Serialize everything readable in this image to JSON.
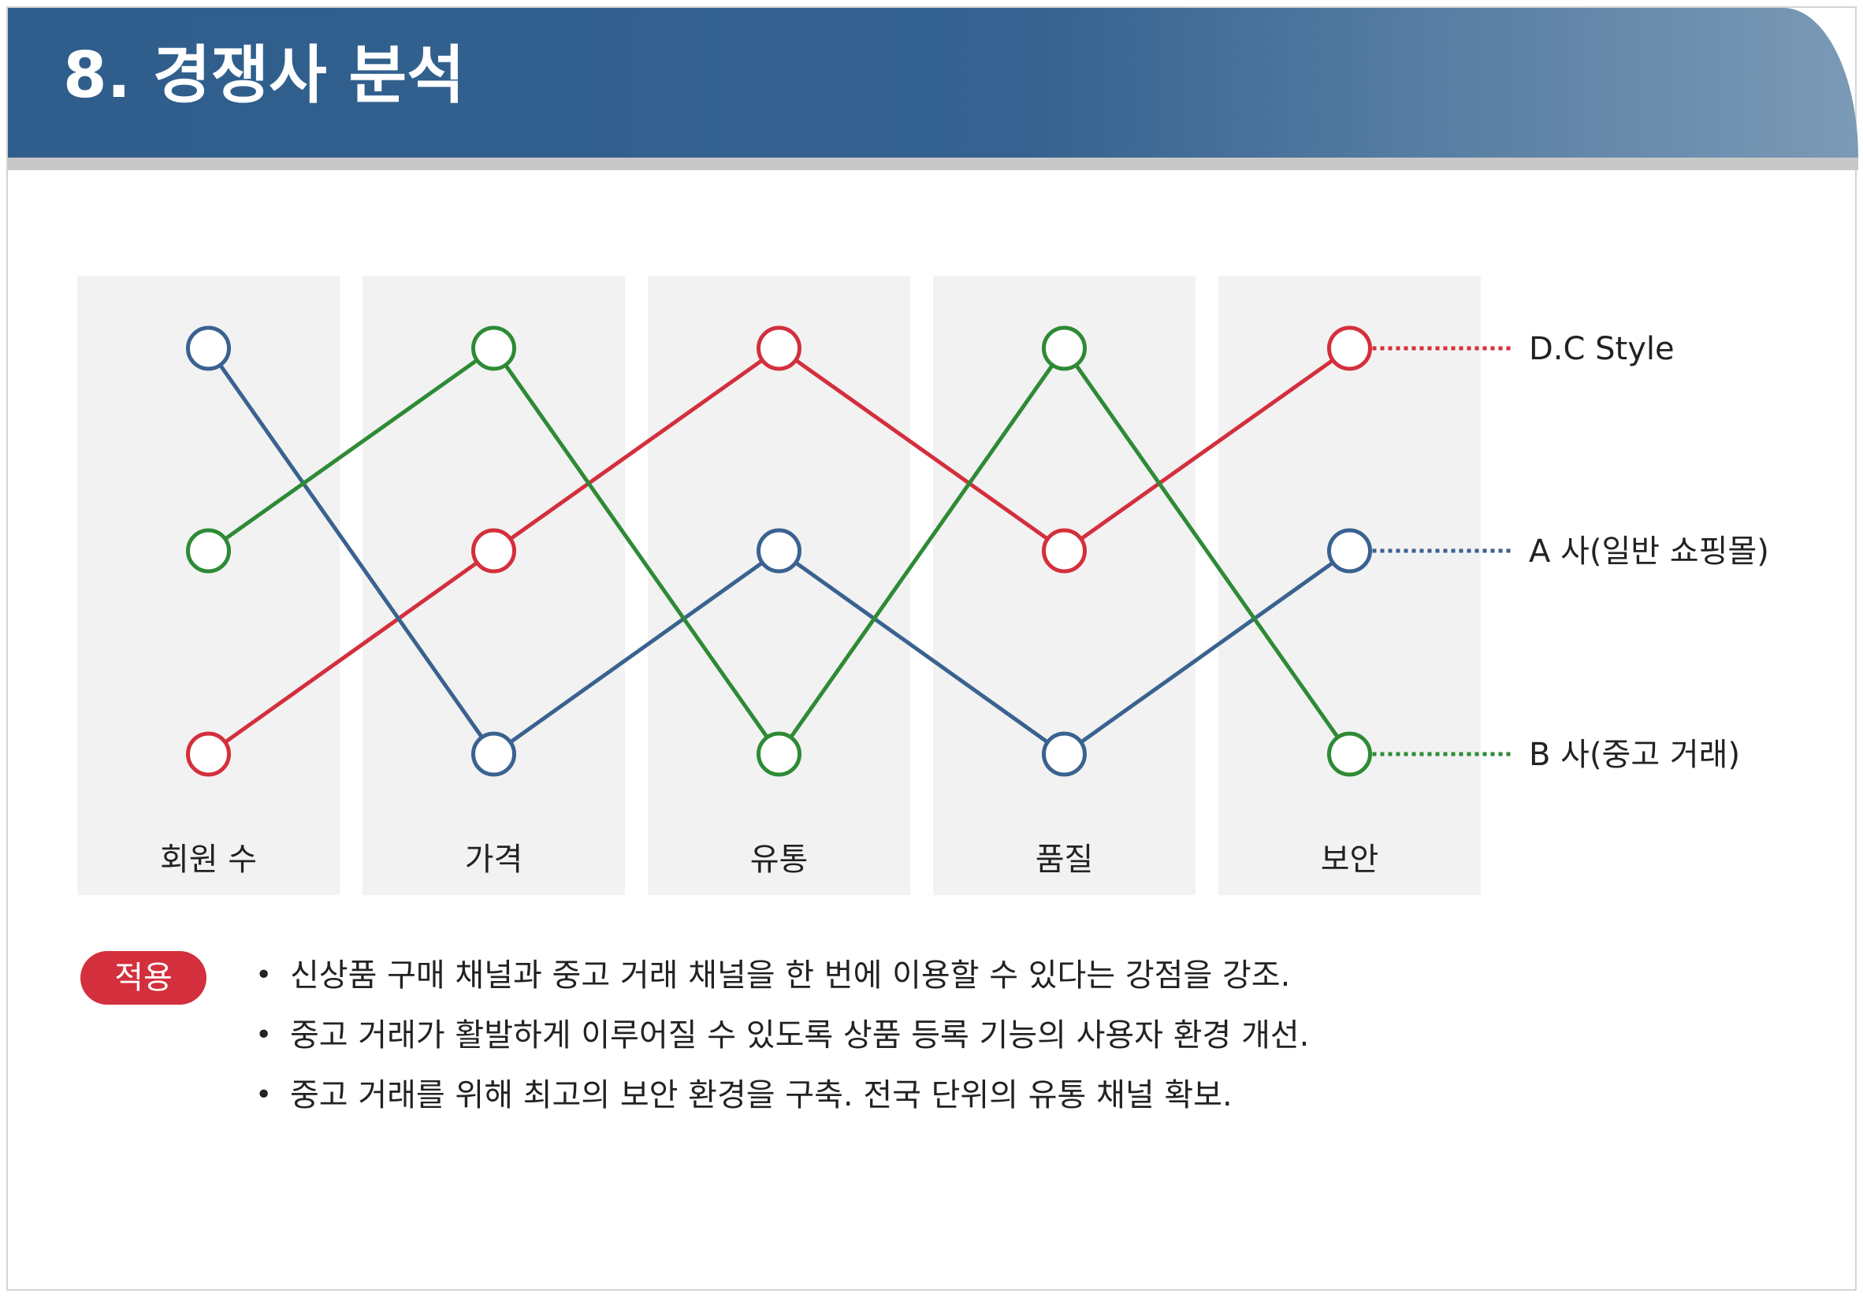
{
  "page": {
    "title": "8. 경쟁사 분석"
  },
  "chart_data": {
    "type": "line",
    "categories": [
      "회원 수",
      "가격",
      "유통",
      "품질",
      "보안"
    ],
    "levels": 3,
    "grid": false,
    "legend": "right, labels at line ends",
    "series": [
      {
        "name": "D.C Style",
        "color": "#d42f3c",
        "values": [
          1,
          2,
          3,
          2,
          3
        ]
      },
      {
        "name": "A 사(일반 쇼핑몰)",
        "color": "#3a6290",
        "values": [
          3,
          1,
          2,
          1,
          2
        ]
      },
      {
        "name": "B 사(중고 거래)",
        "color": "#2e8a35",
        "values": [
          2,
          3,
          1,
          3,
          1
        ]
      }
    ]
  },
  "apply": {
    "badge": "적용",
    "items": [
      "신상품 구매 채널과 중고 거래 채널을 한 번에 이용할 수 있다는 강점을 강조.",
      "중고 거래가 활발하게 이루어질 수 있도록 상품 등록 기능의 사용자 환경 개선.",
      "중고 거래를 위해 최고의 보안 환경을 구축. 전국 단위의 유통 채널 확보."
    ]
  }
}
